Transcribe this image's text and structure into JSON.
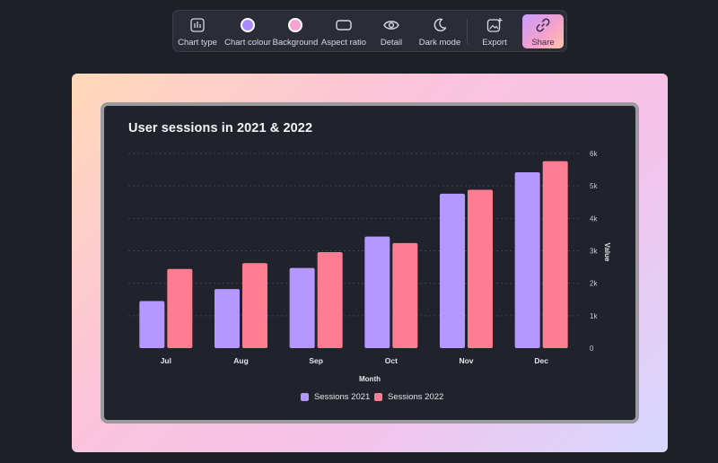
{
  "toolbar": {
    "items": [
      {
        "label": "Chart type",
        "icon": "bar-chart-icon"
      },
      {
        "label": "Chart colour",
        "icon": "colour-swatch-icon",
        "color": "#a98bff"
      },
      {
        "label": "Background",
        "icon": "background-swatch-icon",
        "color": "#f5a3d0"
      },
      {
        "label": "Aspect ratio",
        "icon": "aspect-ratio-icon"
      },
      {
        "label": "Detail",
        "icon": "eye-icon"
      },
      {
        "label": "Dark mode",
        "icon": "moon-icon"
      },
      {
        "label": "Export",
        "icon": "export-image-icon"
      },
      {
        "label": "Share",
        "icon": "link-icon"
      }
    ]
  },
  "colors": {
    "series_2021": "#b497ff",
    "series_2022": "#ff7d91",
    "panel": "#20232b"
  },
  "chart_data": {
    "type": "bar",
    "title": "User sessions in 2021 & 2022",
    "xlabel": "Month",
    "ylabel": "Value",
    "categories": [
      "Jul",
      "Aug",
      "Sep",
      "Oct",
      "Nov",
      "Dec"
    ],
    "series": [
      {
        "name": "Sessions 2021",
        "values": [
          1450,
          1820,
          2470,
          3440,
          4760,
          5420
        ]
      },
      {
        "name": "Sessions 2022",
        "values": [
          2440,
          2620,
          2960,
          3240,
          4880,
          5760
        ]
      }
    ],
    "ylim": [
      0,
      6000
    ],
    "yticks": [
      0,
      1000,
      2000,
      3000,
      4000,
      5000,
      6000
    ],
    "ytick_labels": [
      "0",
      "1k",
      "2k",
      "3k",
      "4k",
      "5k",
      "6k"
    ],
    "y_axis_side": "right",
    "grid": true,
    "legend_position": "bottom"
  }
}
